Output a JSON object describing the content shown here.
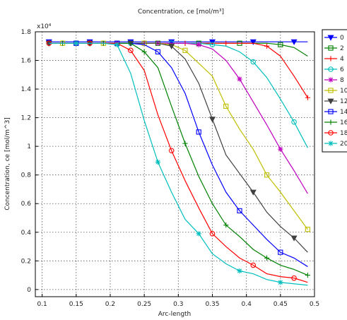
{
  "chart_data": {
    "type": "line",
    "title": "Concentration, ce [mol/m³]",
    "xlabel": "Arc-length",
    "ylabel": "Concentration, ce [mol/m^3]",
    "y_multiplier_label": "x10⁴",
    "xlim": [
      0.09,
      0.5
    ],
    "ylim": [
      -0.05,
      1.8
    ],
    "x_ticks": [
      0.1,
      0.15,
      0.2,
      0.25,
      0.3,
      0.35,
      0.4,
      0.45,
      0.5
    ],
    "x_tick_labels": [
      "0.1",
      "0.15",
      "0.2",
      "0.25",
      "0.3",
      "0.35",
      "0.4",
      "0.45",
      "0.5"
    ],
    "y_ticks": [
      0,
      0.2,
      0.4,
      0.6,
      0.8,
      1.0,
      1.2,
      1.4,
      1.6,
      1.8
    ],
    "y_tick_labels": [
      "0",
      "0.2",
      "0.4",
      "0.6",
      "0.8",
      "1",
      "1.2",
      "1.4",
      "1.6",
      "1.8"
    ],
    "grid": true,
    "legend_position": "top-right (partially clipped)",
    "x": [
      0.11,
      0.13,
      0.15,
      0.17,
      0.19,
      0.21,
      0.23,
      0.25,
      0.27,
      0.29,
      0.31,
      0.33,
      0.35,
      0.37,
      0.39,
      0.41,
      0.43,
      0.45,
      0.47,
      0.49
    ],
    "series": [
      {
        "name": "0",
        "color": "#0000ff",
        "marker": "triangle-down",
        "values": [
          1.73,
          1.73,
          1.73,
          1.73,
          1.73,
          1.73,
          1.73,
          1.73,
          1.73,
          1.73,
          1.73,
          1.73,
          1.73,
          1.73,
          1.73,
          1.73,
          1.73,
          1.73,
          1.73,
          1.73
        ]
      },
      {
        "name": "2",
        "color": "#008000",
        "marker": "square",
        "values": [
          1.72,
          1.72,
          1.72,
          1.72,
          1.72,
          1.72,
          1.72,
          1.72,
          1.72,
          1.72,
          1.72,
          1.72,
          1.72,
          1.72,
          1.72,
          1.72,
          1.72,
          1.71,
          1.69,
          1.63
        ]
      },
      {
        "name": "4",
        "color": "#ff0000",
        "marker": "plus",
        "values": [
          1.72,
          1.72,
          1.72,
          1.72,
          1.72,
          1.72,
          1.72,
          1.72,
          1.72,
          1.72,
          1.72,
          1.72,
          1.72,
          1.72,
          1.72,
          1.72,
          1.7,
          1.63,
          1.49,
          1.34
        ]
      },
      {
        "name": "6",
        "color": "#00bfbf",
        "marker": "circle",
        "values": [
          1.72,
          1.72,
          1.72,
          1.72,
          1.72,
          1.72,
          1.72,
          1.72,
          1.72,
          1.72,
          1.72,
          1.72,
          1.71,
          1.7,
          1.66,
          1.59,
          1.48,
          1.33,
          1.17,
          0.99
        ]
      },
      {
        "name": "8",
        "color": "#bf00bf",
        "marker": "star",
        "values": [
          1.72,
          1.72,
          1.72,
          1.72,
          1.72,
          1.72,
          1.72,
          1.72,
          1.72,
          1.72,
          1.72,
          1.71,
          1.68,
          1.6,
          1.47,
          1.31,
          1.15,
          0.98,
          0.83,
          0.67
        ]
      },
      {
        "name": "10",
        "color": "#bfbf00",
        "marker": "square",
        "values": [
          1.72,
          1.72,
          1.72,
          1.72,
          1.72,
          1.72,
          1.72,
          1.72,
          1.72,
          1.71,
          1.67,
          1.58,
          1.49,
          1.28,
          1.12,
          0.98,
          0.8,
          0.68,
          0.55,
          0.42
        ]
      },
      {
        "name": "12",
        "color": "#404040",
        "marker": "triangle-down",
        "values": [
          1.72,
          1.72,
          1.72,
          1.72,
          1.72,
          1.72,
          1.72,
          1.72,
          1.72,
          1.7,
          1.61,
          1.44,
          1.19,
          0.94,
          0.81,
          0.68,
          0.54,
          0.44,
          0.36,
          0.26
        ]
      },
      {
        "name": "14",
        "color": "#0000ff",
        "marker": "square",
        "values": [
          1.72,
          1.72,
          1.72,
          1.72,
          1.72,
          1.72,
          1.72,
          1.71,
          1.66,
          1.55,
          1.37,
          1.1,
          0.87,
          0.68,
          0.55,
          0.45,
          0.35,
          0.26,
          0.22,
          0.16
        ]
      },
      {
        "name": "16",
        "color": "#008000",
        "marker": "plus",
        "values": [
          1.72,
          1.72,
          1.72,
          1.72,
          1.72,
          1.72,
          1.72,
          1.66,
          1.55,
          1.28,
          1.02,
          0.79,
          0.6,
          0.45,
          0.37,
          0.28,
          0.22,
          0.17,
          0.14,
          0.1
        ]
      },
      {
        "name": "18",
        "color": "#ff0000",
        "marker": "circle",
        "values": [
          1.72,
          1.72,
          1.72,
          1.72,
          1.72,
          1.72,
          1.67,
          1.53,
          1.22,
          0.97,
          0.76,
          0.57,
          0.39,
          0.3,
          0.22,
          0.17,
          0.11,
          0.09,
          0.08,
          0.05
        ]
      },
      {
        "name": "20",
        "color": "#00bfbf",
        "marker": "star",
        "values": [
          1.72,
          1.72,
          1.72,
          1.72,
          1.72,
          1.71,
          1.51,
          1.18,
          0.89,
          0.68,
          0.49,
          0.39,
          0.25,
          0.18,
          0.13,
          0.11,
          0.07,
          0.05,
          0.04,
          0.03
        ]
      }
    ]
  }
}
